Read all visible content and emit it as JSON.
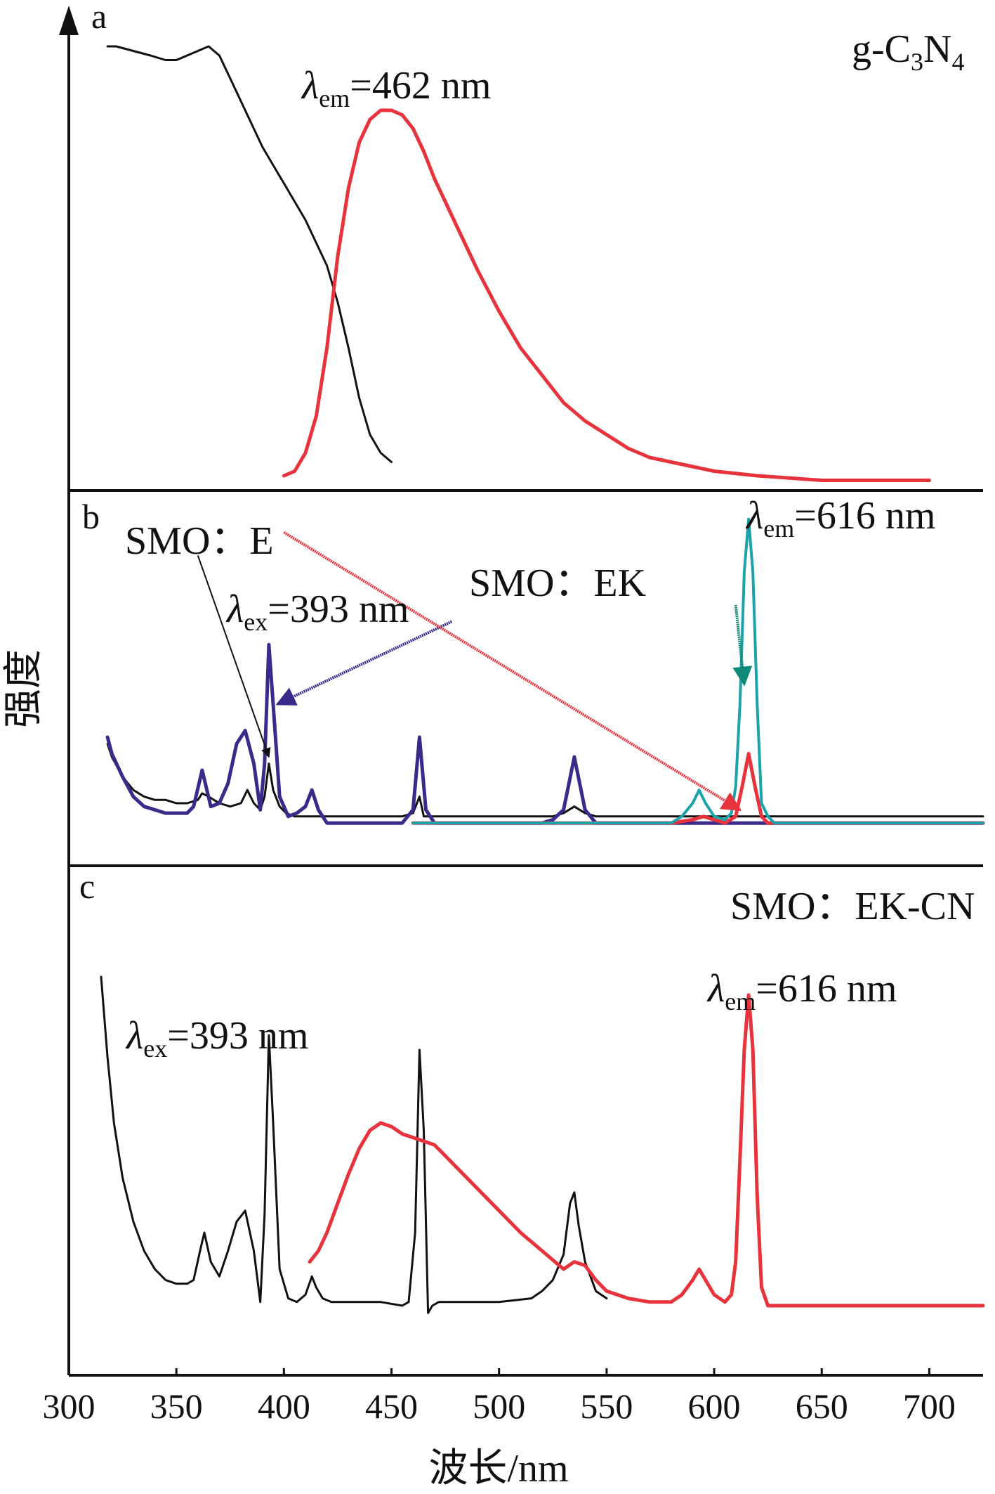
{
  "chart_data": {
    "type": "line",
    "layout": "three vertically stacked panels sharing the x axis",
    "xlabel": "波长/nm",
    "ylabel": "强度",
    "xlim": [
      300,
      725
    ],
    "xticks": [
      300,
      350,
      400,
      450,
      500,
      550,
      600,
      650,
      700
    ],
    "grid": false,
    "colors": {
      "black": "#111111",
      "red": "#e8323c",
      "purple": "#3b2a8a",
      "teal": "#1aa3a8",
      "green": "#0f8a78"
    },
    "panels": [
      {
        "id": "a",
        "letter": "a",
        "label": "g-C",
        "label_sub1": "3",
        "label_mid": "N",
        "label_sub2": "4",
        "ann_em": {
          "sym": "λ",
          "sub": "em",
          "value": "=462 nm"
        },
        "ylim": [
          0,
          100
        ],
        "series": [
          {
            "color": "black",
            "x": [
              318,
              322,
              330,
              338,
              345,
              350,
              355,
              360,
              365,
              370,
              375,
              380,
              385,
              390,
              395,
              400,
              405,
              410,
              415,
              420,
              425,
              430,
              435,
              440,
              445,
              450
            ],
            "y": [
              96,
              96,
              95,
              94,
              93,
              93,
              94,
              95,
              96,
              94,
              89,
              84,
              79,
              74,
              70,
              66,
              62,
              58,
              53,
              48,
              40,
              30,
              19,
              11,
              7,
              5
            ]
          },
          {
            "color": "red",
            "x": [
              400,
              405,
              410,
              415,
              420,
              425,
              430,
              435,
              440,
              445,
              450,
              455,
              460,
              465,
              470,
              480,
              490,
              500,
              510,
              520,
              530,
              540,
              550,
              560,
              570,
              580,
              600,
              620,
              650,
              700
            ],
            "y": [
              2,
              3,
              7,
              15,
              30,
              50,
              65,
              75,
              80,
              82,
              82,
              81,
              78,
              73,
              67,
              57,
              47,
              38,
              30,
              24,
              18,
              14,
              11,
              8,
              6,
              5,
              3,
              2,
              1,
              1
            ]
          }
        ]
      },
      {
        "id": "b",
        "letter": "b",
        "ann_e": "SMO：E",
        "ann_ek": "SMO：EK",
        "ann_ex": {
          "sym": "λ",
          "sub": "ex",
          "value": "=393 nm"
        },
        "ann_em": {
          "sym": "λ",
          "sub": "em",
          "value": "=616 nm"
        },
        "ylim": [
          0,
          100
        ],
        "series": [
          {
            "color": "black",
            "x": [
              318,
              320,
              325,
              330,
              335,
              340,
              345,
              350,
              355,
              360,
              362,
              365,
              370,
              375,
              380,
              383,
              386,
              389,
              391,
              393,
              395,
              398,
              401,
              405,
              410,
              415,
              420,
              430,
              440,
              455,
              460,
              463,
              465,
              468,
              472,
              480,
              500,
              520,
              525,
              530,
              535,
              540,
              545,
              550,
              560,
              570,
              580,
              590,
              600,
              620,
              650,
              700,
              725
            ],
            "y": [
              28,
              24,
              18,
              14,
              12,
              11,
              11,
              10,
              10,
              11,
              13,
              12,
              10,
              9,
              10,
              14,
              10,
              8,
              12,
              22,
              14,
              9,
              7,
              6,
              6,
              6,
              6,
              6,
              6,
              6,
              7,
              12,
              6,
              6,
              6,
              6,
              6,
              6,
              6,
              7,
              9,
              7,
              6,
              6,
              6,
              6,
              6,
              6,
              6,
              6,
              6,
              6,
              6
            ]
          },
          {
            "color": "purple",
            "x": [
              318,
              320,
              325,
              330,
              335,
              340,
              345,
              350,
              355,
              358,
              362,
              366,
              370,
              374,
              378,
              382,
              386,
              389,
              391,
              393,
              395,
              398,
              402,
              406,
              410,
              413,
              416,
              420,
              425,
              430,
              440,
              450,
              455,
              460,
              463,
              466,
              470,
              475,
              480,
              500,
              520,
              525,
              530,
              535,
              540,
              545,
              550,
              560,
              570,
              580,
              600,
              650,
              700,
              725
            ],
            "y": [
              30,
              25,
              18,
              12,
              9,
              8,
              7,
              7,
              7,
              9,
              20,
              9,
              10,
              16,
              28,
              32,
              22,
              8,
              22,
              58,
              40,
              12,
              6,
              7,
              9,
              14,
              8,
              4,
              4,
              4,
              4,
              4,
              4,
              8,
              30,
              8,
              4,
              4,
              4,
              4,
              4,
              5,
              8,
              24,
              8,
              4,
              4,
              4,
              4,
              4,
              4,
              4,
              4,
              4
            ]
          },
          {
            "color": "red",
            "x": [
              460,
              500,
              550,
              580,
              590,
              595,
              600,
              605,
              610,
              613,
              616,
              619,
              622,
              625,
              630,
              650,
              700,
              725
            ],
            "y": [
              4,
              4,
              4,
              4,
              5,
              6,
              5,
              4,
              6,
              15,
              25,
              15,
              6,
              4,
              4,
              4,
              4,
              4
            ]
          },
          {
            "color": "teal",
            "x": [
              460,
              500,
              550,
              580,
              585,
              590,
              593,
              596,
              600,
              605,
              608,
              610,
              612,
              614,
              616,
              618,
              620,
              622,
              625,
              628,
              632,
              640,
              650,
              700,
              725
            ],
            "y": [
              4,
              4,
              4,
              4,
              6,
              10,
              14,
              10,
              6,
              5,
              7,
              15,
              40,
              80,
              96,
              80,
              40,
              10,
              6,
              4,
              4,
              4,
              4,
              4,
              4
            ]
          }
        ],
        "arrows": [
          {
            "color": "black",
            "from": [
              360,
              85
            ],
            "to": [
              393,
              24
            ]
          },
          {
            "color": "purple",
            "from": [
              478,
              65
            ],
            "to": [
              397,
              40
            ]
          },
          {
            "color": "red",
            "from": [
              400,
              92
            ],
            "to": [
              612,
              8
            ]
          },
          {
            "color": "green",
            "from": [
              610,
              70
            ],
            "to": [
              614,
              46
            ]
          }
        ]
      },
      {
        "id": "c",
        "letter": "c",
        "label": "SMO：EK-CN",
        "ann_ex": {
          "sym": "λ",
          "sub": "ex",
          "value": "=393 nm"
        },
        "ann_em": {
          "sym": "λ",
          "sub": "em",
          "value": "=616 nm"
        },
        "ylim": [
          0,
          100
        ],
        "series": [
          {
            "color": "black",
            "x": [
              315,
              318,
              321,
              325,
              330,
              335,
              340,
              345,
              350,
              355,
              358,
              361,
              363,
              366,
              370,
              374,
              378,
              382,
              386,
              389,
              391,
              393,
              395,
              398,
              402,
              406,
              410,
              413,
              415,
              418,
              422,
              428,
              435,
              445,
              455,
              458,
              461,
              463,
              465,
              467,
              469,
              472,
              480,
              500,
              515,
              520,
              525,
              530,
              533,
              535,
              537,
              540,
              545,
              550
            ],
            "y": [
              100,
              78,
              60,
              45,
              33,
              25,
              20,
              17,
              16,
              16,
              17,
              25,
              30,
              22,
              18,
              25,
              33,
              36,
              25,
              11,
              35,
              84,
              60,
              20,
              12,
              11,
              13,
              18,
              15,
              12,
              11,
              11,
              11,
              11,
              10,
              11,
              30,
              80,
              58,
              8,
              10,
              11,
              11,
              11,
              12,
              14,
              17,
              24,
              38,
              41,
              32,
              22,
              14,
              12
            ]
          },
          {
            "color": "red",
            "x": [
              412,
              416,
              420,
              425,
              430,
              435,
              440,
              445,
              450,
              455,
              460,
              465,
              470,
              480,
              490,
              500,
              510,
              520,
              530,
              535,
              540,
              545,
              550,
              560,
              570,
              580,
              585,
              590,
              593,
              596,
              600,
              605,
              608,
              610,
              612,
              614,
              616,
              618,
              620,
              622,
              625,
              630,
              650,
              700,
              725
            ],
            "y": [
              22,
              25,
              30,
              38,
              46,
              53,
              58,
              60,
              59,
              57,
              56,
              55,
              54,
              48,
              42,
              36,
              30,
              25,
              20,
              22,
              21,
              17,
              14,
              12,
              11,
              11,
              13,
              17,
              20,
              17,
              13,
              11,
              13,
              22,
              50,
              80,
              95,
              80,
              40,
              15,
              10,
              10,
              10,
              10,
              10
            ]
          }
        ]
      }
    ]
  }
}
